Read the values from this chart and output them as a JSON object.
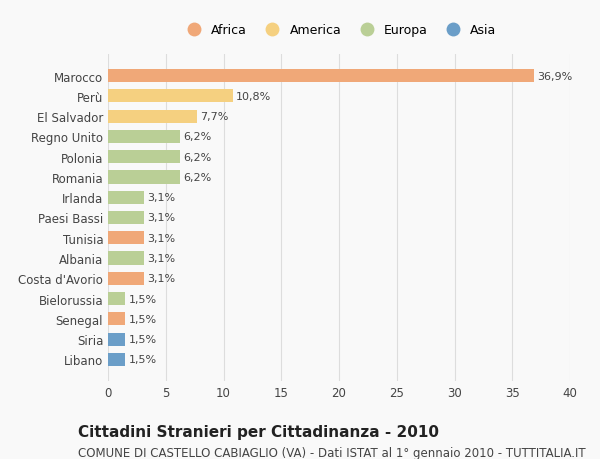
{
  "categories": [
    "Libano",
    "Siria",
    "Senegal",
    "Bielorussia",
    "Costa d'Avorio",
    "Albania",
    "Tunisia",
    "Paesi Bassi",
    "Irlanda",
    "Romania",
    "Polonia",
    "Regno Unito",
    "El Salvador",
    "Perù",
    "Marocco"
  ],
  "values": [
    1.5,
    1.5,
    1.5,
    1.5,
    3.1,
    3.1,
    3.1,
    3.1,
    3.1,
    6.2,
    6.2,
    6.2,
    7.7,
    10.8,
    36.9
  ],
  "continents": [
    "Asia",
    "Asia",
    "Africa",
    "Europa",
    "Africa",
    "Europa",
    "Africa",
    "Europa",
    "Europa",
    "Europa",
    "Europa",
    "Europa",
    "America",
    "America",
    "Africa"
  ],
  "colors": {
    "Africa": "#F0A878",
    "America": "#F5D080",
    "Europa": "#BACF96",
    "Asia": "#6B9EC8"
  },
  "legend_entries": [
    "Africa",
    "America",
    "Europa",
    "Asia"
  ],
  "xlim": [
    0,
    40
  ],
  "xticks": [
    0,
    5,
    10,
    15,
    20,
    25,
    30,
    35,
    40
  ],
  "title": "Cittadini Stranieri per Cittadinanza - 2010",
  "subtitle": "COMUNE DI CASTELLO CABIAGLIO (VA) - Dati ISTAT al 1° gennaio 2010 - TUTTITALIA.IT",
  "background_color": "#f9f9f9",
  "bar_height": 0.65,
  "title_fontsize": 11,
  "subtitle_fontsize": 8.5
}
